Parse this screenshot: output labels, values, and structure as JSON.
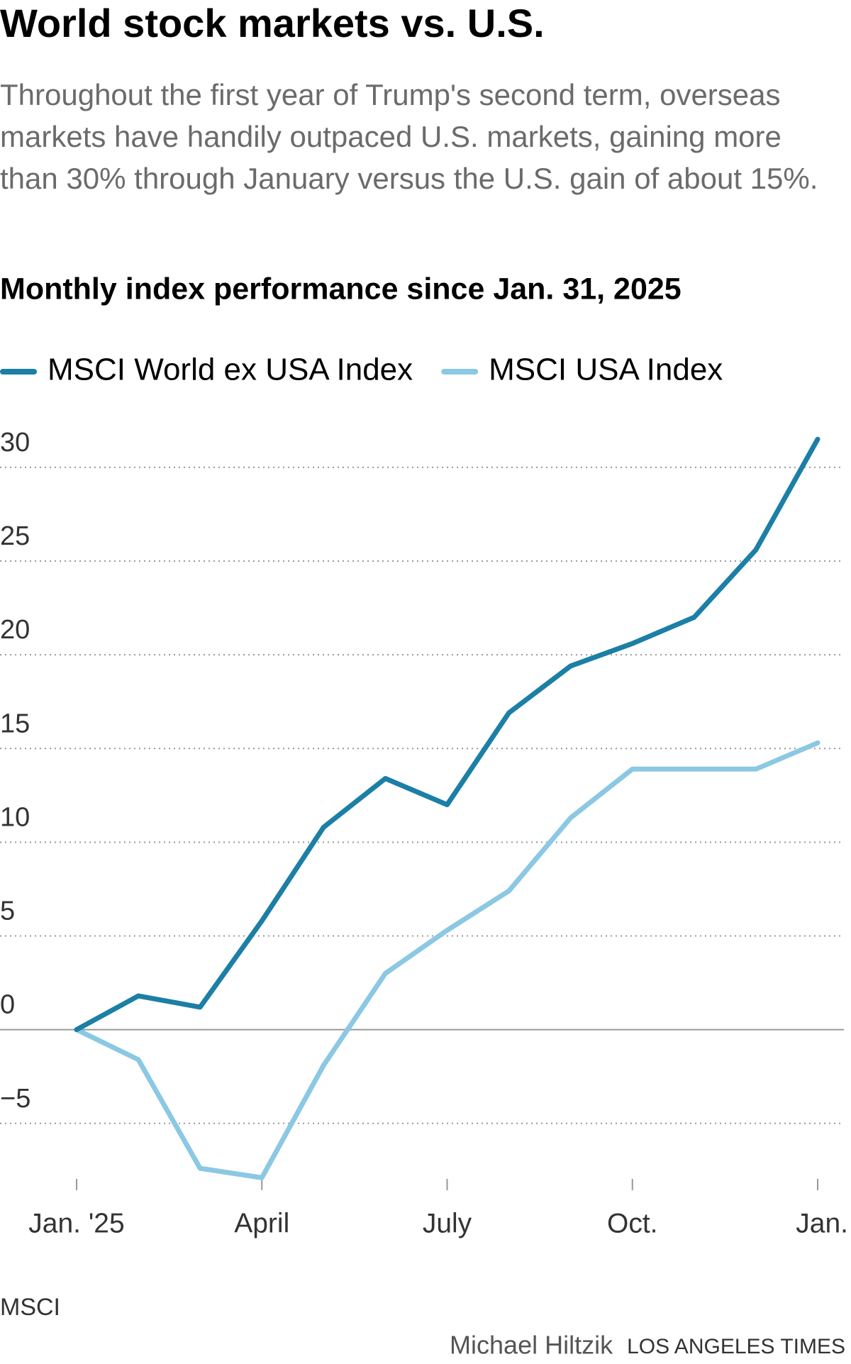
{
  "chart_data": {
    "type": "line",
    "title": "World stock markets vs. U.S.",
    "description": "Throughout the first year of Trump's second term, overseas markets have handily outpaced U.S. markets, gaining more than 30% through January versus the U.S. gain of about 15%.",
    "subtitle": "Monthly index performance since Jan. 31, 2025",
    "categories": [
      "Jan. '25",
      null,
      null,
      "April",
      null,
      null,
      "July",
      null,
      null,
      "Oct.",
      null,
      null,
      "Jan."
    ],
    "series": [
      {
        "name": "MSCI World ex USA Index",
        "color": "#1b7fa6",
        "values": [
          0,
          1.8,
          1.2,
          5.8,
          10.8,
          13.4,
          12.0,
          16.9,
          19.4,
          20.6,
          22.0,
          25.6,
          31.5
        ]
      },
      {
        "name": "MSCI USA Index",
        "color": "#8bc8e3",
        "values": [
          0,
          -1.6,
          -7.4,
          -7.9,
          -1.9,
          3.0,
          5.3,
          7.4,
          11.3,
          13.9,
          13.9,
          13.9,
          15.3
        ]
      }
    ],
    "ylim": [
      -8,
      32
    ],
    "yticks": [
      {
        "value": -5,
        "label": "−5"
      },
      0,
      5,
      10,
      15,
      20,
      25,
      30
    ],
    "grid": true,
    "source": "MSCI",
    "credit": "Michael Hiltzik",
    "publisher": "LOS ANGELES TIMES"
  }
}
